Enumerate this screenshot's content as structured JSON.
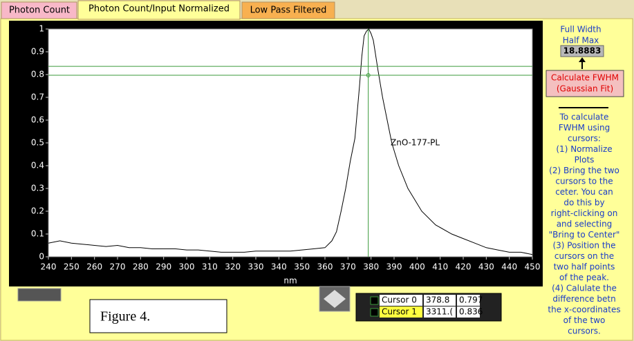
{
  "tabs": [
    "Photon Count",
    "Photon Count/Input Normalized",
    "Low Pass Filtered"
  ],
  "chart_data": {
    "type": "line",
    "x": [
      240,
      245,
      250,
      255,
      260,
      265,
      270,
      275,
      280,
      285,
      290,
      295,
      300,
      305,
      310,
      315,
      320,
      325,
      330,
      335,
      340,
      345,
      350,
      355,
      360,
      363,
      365,
      367,
      369,
      371,
      373,
      375,
      376,
      377,
      378,
      379,
      380,
      381,
      383,
      385,
      387,
      389,
      392,
      396,
      402,
      408,
      415,
      420,
      425,
      430,
      435,
      440,
      445,
      450
    ],
    "series": [
      {
        "name": "ZnO-177-PL",
        "color": "#000000",
        "values": [
          0.06,
          0.07,
          0.06,
          0.055,
          0.05,
          0.045,
          0.05,
          0.04,
          0.04,
          0.035,
          0.035,
          0.035,
          0.03,
          0.03,
          0.025,
          0.02,
          0.02,
          0.02,
          0.025,
          0.025,
          0.025,
          0.025,
          0.03,
          0.035,
          0.04,
          0.07,
          0.11,
          0.2,
          0.3,
          0.42,
          0.52,
          0.75,
          0.88,
          0.97,
          0.99,
          1.0,
          0.98,
          0.95,
          0.82,
          0.7,
          0.6,
          0.5,
          0.4,
          0.3,
          0.2,
          0.14,
          0.1,
          0.08,
          0.06,
          0.04,
          0.03,
          0.02,
          0.02,
          0.01
        ]
      }
    ],
    "xlabel": "nm",
    "xlim": [
      240,
      450
    ],
    "xticks": [
      240,
      250,
      260,
      270,
      280,
      290,
      300,
      310,
      320,
      330,
      340,
      350,
      360,
      370,
      380,
      390,
      400,
      410,
      420,
      430,
      440,
      450
    ],
    "ylim": [
      0,
      1
    ],
    "yticks": [
      0,
      0.1,
      0.2,
      0.3,
      0.4,
      0.5,
      0.6,
      0.7,
      0.8,
      0.9,
      1
    ],
    "cursors": [
      {
        "x": 378.8,
        "y": 0.797
      },
      {
        "y": 0.836
      }
    ],
    "cursor_color": "#3a9a3a"
  },
  "cursor_panel": {
    "rows": [
      [
        "Cursor 0",
        "378.8",
        "0.797"
      ],
      [
        "Cursor 1",
        "3311.(",
        "0.836"
      ]
    ]
  },
  "fwhm": {
    "label": [
      "Full Width",
      "Half Max"
    ],
    "value": "18.8883",
    "button": [
      "Calculate FWHM",
      "(Gaussian Fit)"
    ]
  },
  "instructions": [
    "To calculate",
    "FWHM using",
    "cursors:",
    "(1) Normalize",
    "Plots",
    "(2) Bring the two",
    "cursors to the",
    "ceter. You can",
    "do this by",
    "right-clicking on",
    "and selecting",
    "\"Bring to Center\"",
    "(3) Position the",
    "cursors on the",
    "two half points",
    "of the peak.",
    "(4) Calulate the",
    "difference betn",
    "the x-coordinates",
    "of the two",
    "cursors."
  ],
  "figure_label": "Figure 4."
}
